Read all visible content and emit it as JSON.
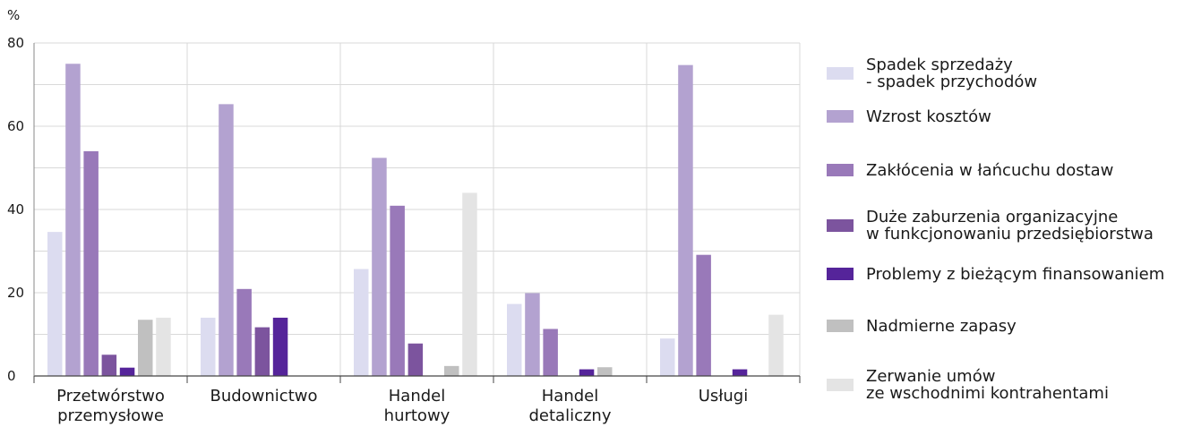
{
  "chart_data": {
    "type": "bar",
    "y_unit": "%",
    "ylim": [
      0,
      80
    ],
    "yticks": [
      "0",
      "20",
      "40",
      "60",
      "80"
    ],
    "grid": true,
    "legend_position": "right",
    "categories": [
      [
        "Przetwórstwo",
        "przemysłowe"
      ],
      [
        "Budownictwo"
      ],
      [
        "Handel",
        "hurtowy"
      ],
      [
        "Handel",
        "detaliczny"
      ],
      [
        "Usługi"
      ]
    ],
    "series": [
      {
        "name": [
          "Spadek sprzedaży",
          "- spadek przychodów"
        ],
        "color": "#dcdcf0",
        "values": [
          34.6,
          14.0,
          25.7,
          17.3,
          9.0
        ]
      },
      {
        "name": [
          "Wzrost kosztów"
        ],
        "color": "#b3a2d0",
        "values": [
          75.0,
          65.3,
          52.4,
          19.9,
          74.7
        ]
      },
      {
        "name": [
          "Zakłócenia w łańcuchu dostaw"
        ],
        "color": "#9979b9",
        "values": [
          54.0,
          20.9,
          40.9,
          11.3,
          29.1
        ]
      },
      {
        "name": [
          "Duże zaburzenia organizacyjne",
          "w funkcjonowaniu przedsiębiorstwa"
        ],
        "color": "#7c549e",
        "values": [
          5.1,
          11.7,
          7.8,
          0,
          0
        ]
      },
      {
        "name": [
          "Problemy z bieżącym finansowaniem"
        ],
        "color": "#55249a",
        "values": [
          2.0,
          14.0,
          0,
          1.6,
          1.6
        ]
      },
      {
        "name": [
          "Nadmierne zapasy"
        ],
        "color": "#c0c0c0",
        "values": [
          13.5,
          0,
          2.4,
          2.1,
          0
        ]
      },
      {
        "name": [
          "Zerwanie umów",
          "ze wschodnimi kontrahentami"
        ],
        "color": "#e4e4e4",
        "values": [
          14.0,
          0,
          44.0,
          0,
          14.7
        ]
      }
    ]
  }
}
